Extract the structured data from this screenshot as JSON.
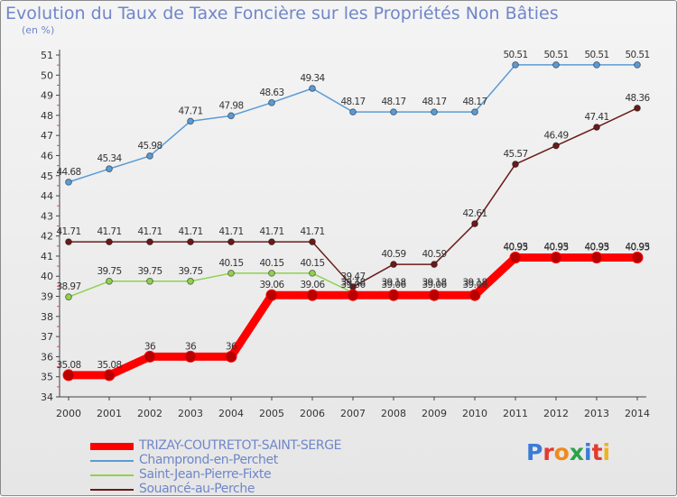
{
  "title": "Evolution du Taux de Taxe Foncière sur les Propriétés Non Bâties",
  "unit_label": "(en %)",
  "logo": {
    "letters": [
      "P",
      "r",
      "o",
      "x",
      "i",
      "t",
      "i"
    ],
    "colors": [
      "#3b7bd8",
      "#e33b2e",
      "#f08a1d",
      "#2aa34a",
      "#3b7bd8",
      "#e33b2e",
      "#f0b31d"
    ]
  },
  "chart_data": {
    "type": "line",
    "x": [
      "2000",
      "2001",
      "2002",
      "2003",
      "2004",
      "2005",
      "2006",
      "2007",
      "2008",
      "2009",
      "2010",
      "2011",
      "2012",
      "2013",
      "2014"
    ],
    "ylim": [
      34,
      51
    ],
    "yticks": [
      "34",
      "35",
      "36",
      "37",
      "38",
      "39",
      "40",
      "41",
      "42",
      "43",
      "44",
      "45",
      "46",
      "47",
      "48",
      "49",
      "50",
      "51"
    ],
    "grid": false,
    "legend_position": "bottom-left",
    "series": [
      {
        "name": "Champrond-en-Perchet",
        "color": "#5b9bd5",
        "values": [
          44.68,
          45.34,
          45.98,
          47.71,
          47.98,
          48.63,
          49.34,
          48.17,
          48.17,
          48.17,
          48.17,
          50.51,
          50.51,
          50.51,
          50.51
        ],
        "labels": [
          "44.68",
          "45.34",
          "45.98",
          "47.71",
          "47.98",
          "48.63",
          "49.34",
          "48.17",
          "48.17",
          "48.17",
          "48.17",
          "50.51",
          "50.51",
          "50.51",
          "50.51"
        ]
      },
      {
        "name": "Souancé-au-Perche",
        "color": "#6b1a1a",
        "values": [
          41.71,
          41.71,
          41.71,
          41.71,
          41.71,
          41.71,
          41.71,
          39.47,
          40.59,
          40.59,
          42.61,
          45.57,
          46.49,
          47.41,
          48.36
        ],
        "labels": [
          "41.71",
          "41.71",
          "41.71",
          "41.71",
          "41.71",
          "41.71",
          "41.71",
          "39.47",
          "40.59",
          "40.59",
          "42.61",
          "45.57",
          "46.49",
          "47.41",
          "48.36"
        ]
      },
      {
        "name": "Saint-Jean-Pierre-Fixte",
        "color": "#8fd14f",
        "values": [
          38.97,
          39.75,
          39.75,
          39.75,
          40.15,
          40.15,
          40.15,
          39.18,
          39.18,
          39.18,
          39.18,
          40.95,
          40.95,
          40.95,
          40.95
        ],
        "labels": [
          "38.97",
          "39.75",
          "39.75",
          "39.75",
          "40.15",
          "40.15",
          "40.15",
          "39.18",
          "39.18",
          "39.18",
          "39.18",
          "40.95",
          "40.95",
          "40.95",
          "40.95"
        ]
      },
      {
        "name": "TRIZAY-COUTRETOT-SAINT-SERGE",
        "color": "#ff0000",
        "values": [
          35.08,
          35.08,
          36,
          36,
          36,
          39.06,
          39.06,
          39.06,
          39.06,
          39.06,
          39.06,
          40.93,
          40.93,
          40.93,
          40.93
        ],
        "labels": [
          "35.08",
          "35.08",
          "36",
          "36",
          "36",
          "39.06",
          "39.06",
          "39.06",
          "39.06",
          "39.06",
          "39.06",
          "40.93",
          "40.93",
          "40.93",
          "40.93"
        ]
      }
    ]
  }
}
